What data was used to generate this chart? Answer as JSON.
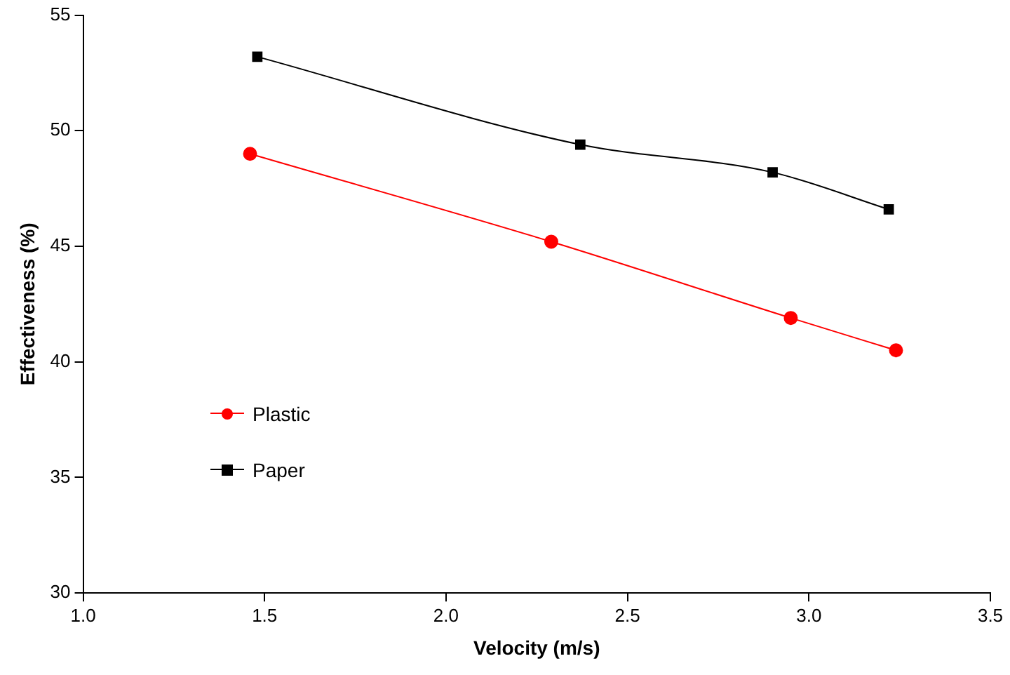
{
  "chart_data": {
    "type": "line",
    "xlabel": "Velocity (m/s)",
    "ylabel": "Effectiveness (%)",
    "xlim": [
      1.0,
      3.5
    ],
    "xticks": [
      {
        "value": 1,
        "label": "1.0"
      },
      {
        "value": 1.5,
        "label": "1.5"
      },
      {
        "value": 2,
        "label": "2.0"
      },
      {
        "value": 2.5,
        "label": "2.5"
      },
      {
        "value": 3,
        "label": "3.0"
      },
      {
        "value": 3.5,
        "label": "3.5"
      }
    ],
    "ylim": [
      30,
      55
    ],
    "yticks": [
      30,
      35,
      40,
      45,
      50,
      55
    ],
    "grid": false,
    "legend": "left",
    "series": [
      {
        "name": "Plastic",
        "color": "#ff0000",
        "marker": "circle",
        "x": [
          1.46,
          2.29,
          2.95,
          3.24
        ],
        "values": [
          49.0,
          45.2,
          41.9,
          40.5
        ]
      },
      {
        "name": "Paper",
        "color": "#000000",
        "marker": "square",
        "x": [
          1.48,
          2.37,
          2.9,
          3.22
        ],
        "values": [
          53.2,
          49.4,
          48.2,
          46.6
        ]
      }
    ]
  }
}
